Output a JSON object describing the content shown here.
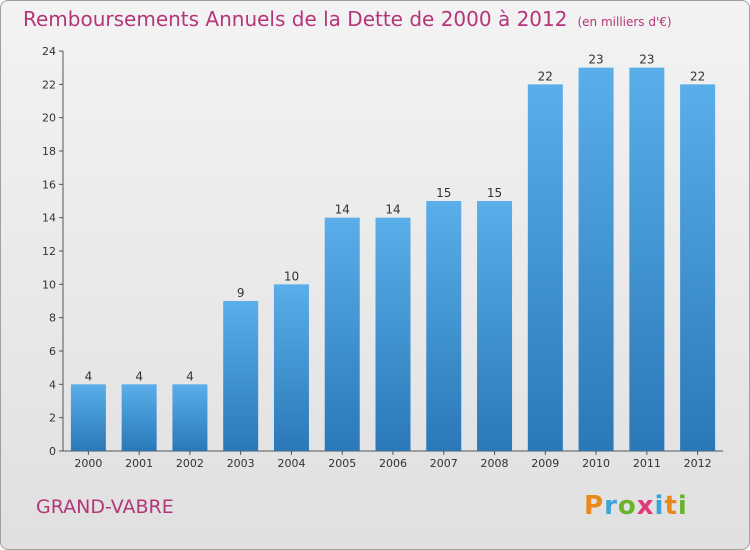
{
  "title": "Remboursements Annuels de la Dette de 2000 à 2012",
  "unit_note": "(en milliers d'€)",
  "commune": "GRAND-VABRE",
  "logo": {
    "letters": [
      "P",
      "r",
      "o",
      "x",
      "i",
      "t",
      "i"
    ],
    "colors": [
      "#e8891c",
      "#3aa3d8",
      "#6ab42d",
      "#e03a7a",
      "#3aa3d8",
      "#e8891c",
      "#6ab42d"
    ]
  },
  "colors": {
    "bar_top": "#5aaeea",
    "bar_bottom": "#2a78b8",
    "accent": "#b4367a"
  },
  "chart_data": {
    "type": "bar",
    "title": "Remboursements Annuels de la Dette de 2000 à 2012",
    "categories": [
      "2000",
      "2001",
      "2002",
      "2003",
      "2004",
      "2005",
      "2006",
      "2007",
      "2008",
      "2009",
      "2010",
      "2011",
      "2012"
    ],
    "values": [
      4,
      4,
      4,
      9,
      10,
      14,
      14,
      15,
      15,
      22,
      23,
      23,
      22
    ],
    "ylim": [
      0,
      24
    ],
    "yticks": [
      0,
      2,
      4,
      6,
      8,
      10,
      12,
      14,
      16,
      18,
      20,
      22,
      24
    ],
    "xlabel": "",
    "ylabel": "",
    "grid": false,
    "data_labels": true
  }
}
